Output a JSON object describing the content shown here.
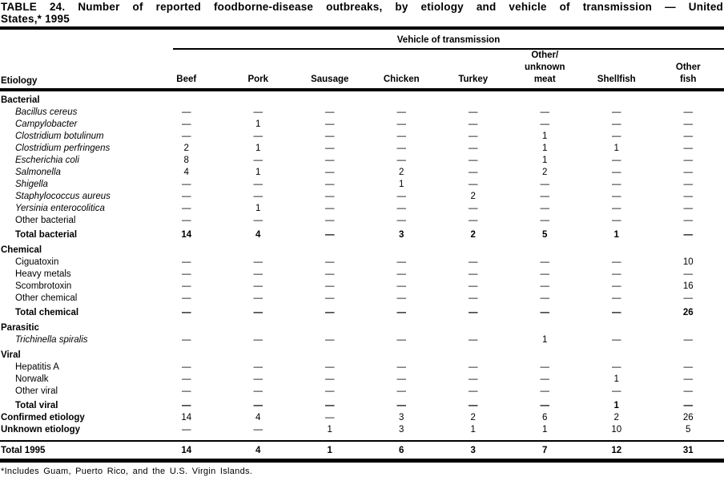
{
  "title": {
    "line1": "TABLE 24. Number of reported foodborne-disease outbreaks, by etiology and vehicle of transmission — United",
    "line2": "States,* 1995"
  },
  "table": {
    "spanner": "Vehicle of transmission",
    "row_header": "Etiology",
    "columns": [
      "Beef",
      "Pork",
      "Sausage",
      "Chicken",
      "Turkey",
      "Other/\nunknown\nmeat",
      "Shellfish",
      "Other\nfish"
    ],
    "rows": [
      {
        "label": "Bacterial",
        "style": "section",
        "values": []
      },
      {
        "label": "Bacillus cereus",
        "style": "species",
        "values": [
          "—",
          "—",
          "—",
          "—",
          "—",
          "—",
          "—",
          "—"
        ]
      },
      {
        "label": "Campylobacter",
        "style": "species",
        "values": [
          "—",
          "1",
          "—",
          "—",
          "—",
          "—",
          "—",
          "—"
        ]
      },
      {
        "label": "Clostridium botulinum",
        "style": "species",
        "values": [
          "—",
          "—",
          "—",
          "—",
          "—",
          "1",
          "—",
          "—"
        ]
      },
      {
        "label": "Clostridium perfringens",
        "style": "species",
        "values": [
          "2",
          "1",
          "—",
          "—",
          "—",
          "1",
          "1",
          "—"
        ]
      },
      {
        "label": "Escherichia coli",
        "style": "species",
        "values": [
          "8",
          "—",
          "—",
          "—",
          "—",
          "1",
          "—",
          "—"
        ]
      },
      {
        "label": "Salmonella",
        "style": "species",
        "values": [
          "4",
          "1",
          "—",
          "2",
          "—",
          "2",
          "—",
          "—"
        ]
      },
      {
        "label": "Shigella",
        "style": "species",
        "values": [
          "—",
          "—",
          "—",
          "1",
          "—",
          "—",
          "—",
          "—"
        ]
      },
      {
        "label": "Staphylococcus aureus",
        "style": "species",
        "values": [
          "—",
          "—",
          "—",
          "—",
          "2",
          "—",
          "—",
          "—"
        ]
      },
      {
        "label": "Yersinia enterocolitica",
        "style": "species",
        "values": [
          "—",
          "1",
          "—",
          "—",
          "—",
          "—",
          "—",
          "—"
        ]
      },
      {
        "label": "Other bacterial",
        "style": "item",
        "values": [
          "—",
          "—",
          "—",
          "—",
          "—",
          "—",
          "—",
          "—"
        ]
      },
      {
        "label": "Total bacterial",
        "style": "total",
        "values": [
          "14",
          "4",
          "—",
          "3",
          "2",
          "5",
          "1",
          "—"
        ]
      },
      {
        "label": "Chemical",
        "style": "section",
        "values": []
      },
      {
        "label": "Ciguatoxin",
        "style": "item",
        "values": [
          "—",
          "—",
          "—",
          "—",
          "—",
          "—",
          "—",
          "10"
        ]
      },
      {
        "label": "Heavy metals",
        "style": "item",
        "values": [
          "—",
          "—",
          "—",
          "—",
          "—",
          "—",
          "—",
          "—"
        ]
      },
      {
        "label": "Scombrotoxin",
        "style": "item",
        "values": [
          "—",
          "—",
          "—",
          "—",
          "—",
          "—",
          "—",
          "16"
        ]
      },
      {
        "label": "Other chemical",
        "style": "item",
        "values": [
          "—",
          "—",
          "—",
          "—",
          "—",
          "—",
          "—",
          "—"
        ]
      },
      {
        "label": "Total chemical",
        "style": "total",
        "values": [
          "—",
          "—",
          "—",
          "—",
          "—",
          "—",
          "—",
          "26"
        ]
      },
      {
        "label": "Parasitic",
        "style": "section",
        "values": []
      },
      {
        "label": "Trichinella spiralis",
        "style": "species",
        "values": [
          "—",
          "—",
          "—",
          "—",
          "—",
          "1",
          "—",
          "—"
        ]
      },
      {
        "label": "Viral",
        "style": "section",
        "values": []
      },
      {
        "label": "Hepatitis A",
        "style": "item",
        "values": [
          "—",
          "—",
          "—",
          "—",
          "—",
          "—",
          "—",
          "—"
        ]
      },
      {
        "label": "Norwalk",
        "style": "item",
        "values": [
          "—",
          "—",
          "—",
          "—",
          "—",
          "—",
          "1",
          "—"
        ]
      },
      {
        "label": "Other viral",
        "style": "item",
        "values": [
          "—",
          "—",
          "—",
          "—",
          "—",
          "—",
          "—",
          "—"
        ]
      },
      {
        "label": "Total viral",
        "style": "total",
        "values": [
          "—",
          "—",
          "—",
          "—",
          "—",
          "—",
          "1",
          "—"
        ]
      },
      {
        "label": "Confirmed etiology",
        "style": "summary",
        "values": [
          "14",
          "4",
          "—",
          "3",
          "2",
          "6",
          "2",
          "26"
        ]
      },
      {
        "label": "Unknown etiology",
        "style": "summary",
        "values": [
          "—",
          "—",
          "1",
          "3",
          "1",
          "1",
          "10",
          "5"
        ]
      },
      {
        "label": "Total 1995",
        "style": "grand",
        "values": [
          "14",
          "4",
          "1",
          "6",
          "3",
          "7",
          "12",
          "31"
        ]
      }
    ]
  },
  "footnote": "*Includes Guam, Puerto Rico, and the U.S. Virgin Islands."
}
